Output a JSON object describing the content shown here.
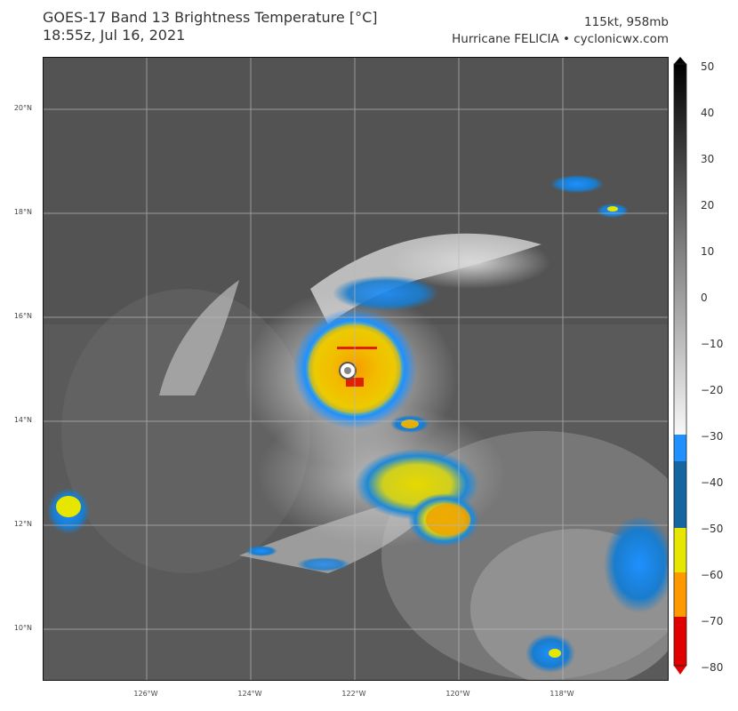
{
  "header": {
    "title_line1": "GOES-17 Band 13 Brightness Temperature [°C]",
    "title_line2": "18:55z, Jul 16, 2021",
    "storm_line1": "115kt, 958mb",
    "storm_line2": "Hurricane FELICIA • cyclonicwx.com"
  },
  "map": {
    "lat_labels": [
      "20°N",
      "18°N",
      "16°N",
      "14°N",
      "12°N",
      "10°N"
    ],
    "lon_labels": [
      "126°W",
      "124°W",
      "122°W",
      "120°W",
      "118°W"
    ],
    "storm": {
      "name": "FELICIA",
      "lat": 14.95,
      "lon": -122.3
    }
  },
  "colorbar": {
    "ticks": [
      "50",
      "40",
      "30",
      "20",
      "10",
      "0",
      "−10",
      "−20",
      "−30",
      "−40",
      "−50",
      "−60",
      "−70",
      "−80"
    ],
    "range": [
      -80,
      50
    ],
    "colors": {
      "warm_top": "#000000",
      "gray_mid": "#7f7f7f",
      "white": "#ffffff",
      "blue_light": "#1e90ff",
      "blue_dark": "#1565a0",
      "yellow": "#e6e600",
      "orange": "#ff9900",
      "red": "#e00000"
    }
  }
}
